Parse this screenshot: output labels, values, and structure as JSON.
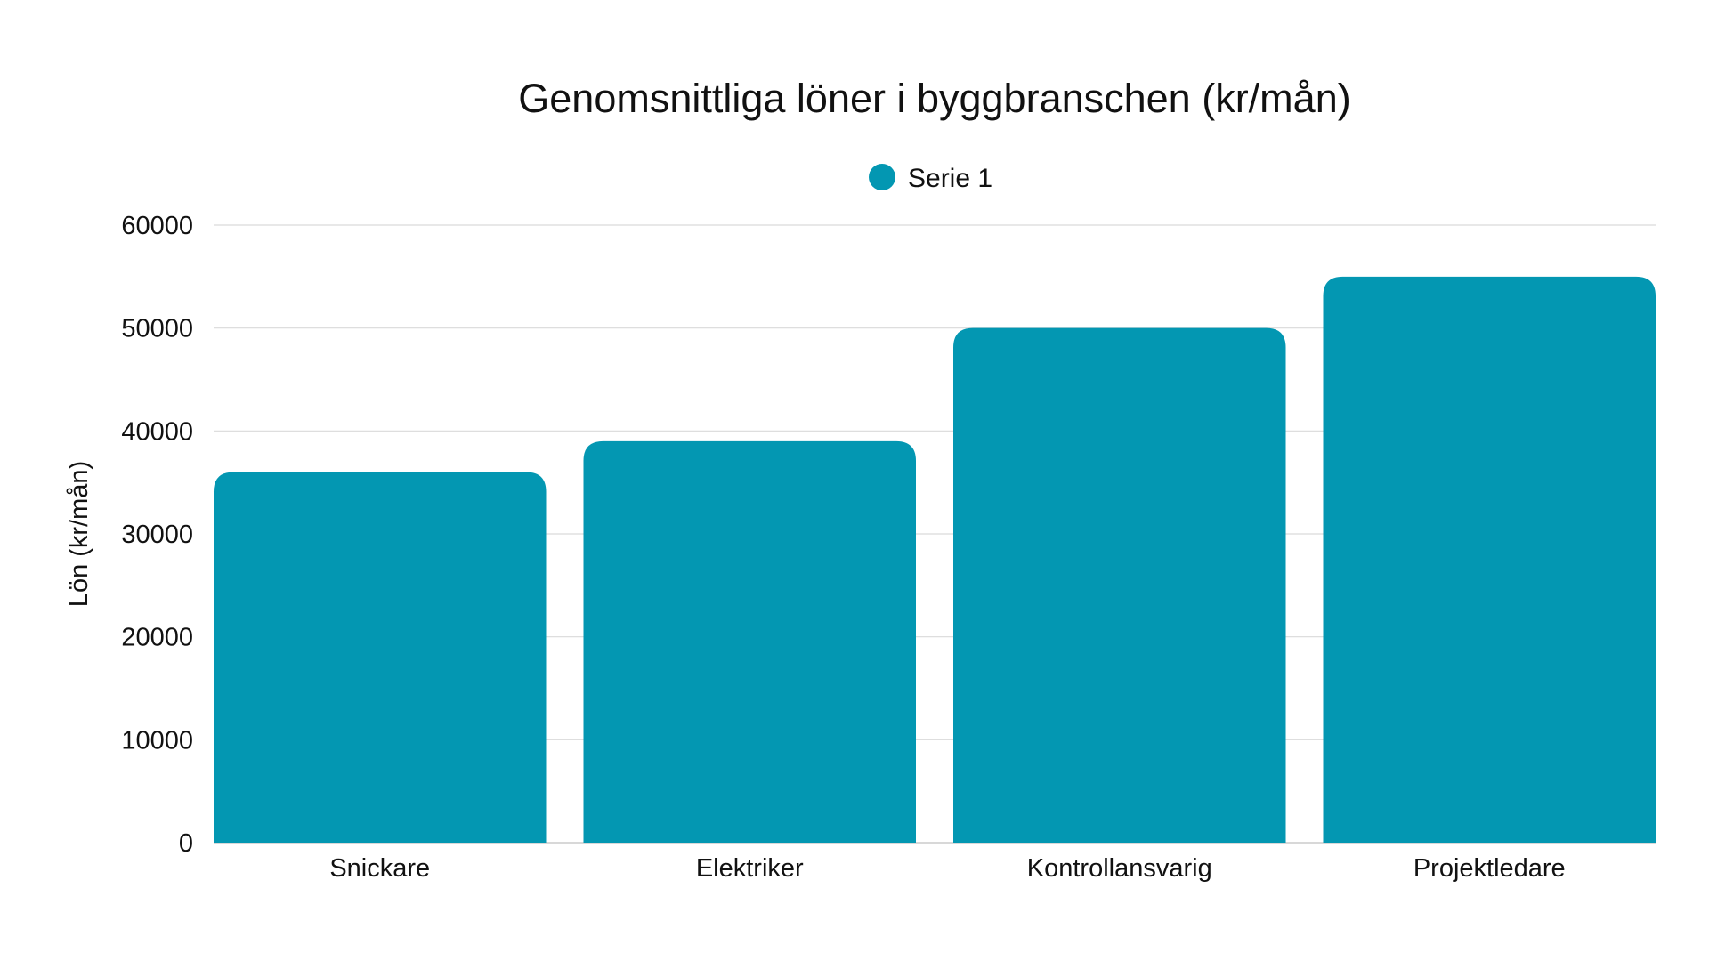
{
  "chart_data": {
    "type": "bar",
    "title": "Genomsnittliga löner i byggbranschen (kr/mån)",
    "categories": [
      "Snickare",
      "Elektriker",
      "Kontrollansvarig",
      "Projektledare"
    ],
    "series": [
      {
        "name": "Serie 1",
        "color": "#0397b2",
        "values": [
          36000,
          39000,
          50000,
          55000
        ]
      }
    ],
    "xlabel": "",
    "ylabel": "Lön (kr/mån)",
    "ylim": [
      0,
      60000
    ],
    "yticks": [
      0,
      10000,
      20000,
      30000,
      40000,
      50000,
      60000
    ],
    "ytick_labels": [
      "0",
      "10000",
      "20000",
      "30000",
      "40000",
      "50000",
      "60000"
    ],
    "grid": true,
    "legend_position": "top-center"
  }
}
